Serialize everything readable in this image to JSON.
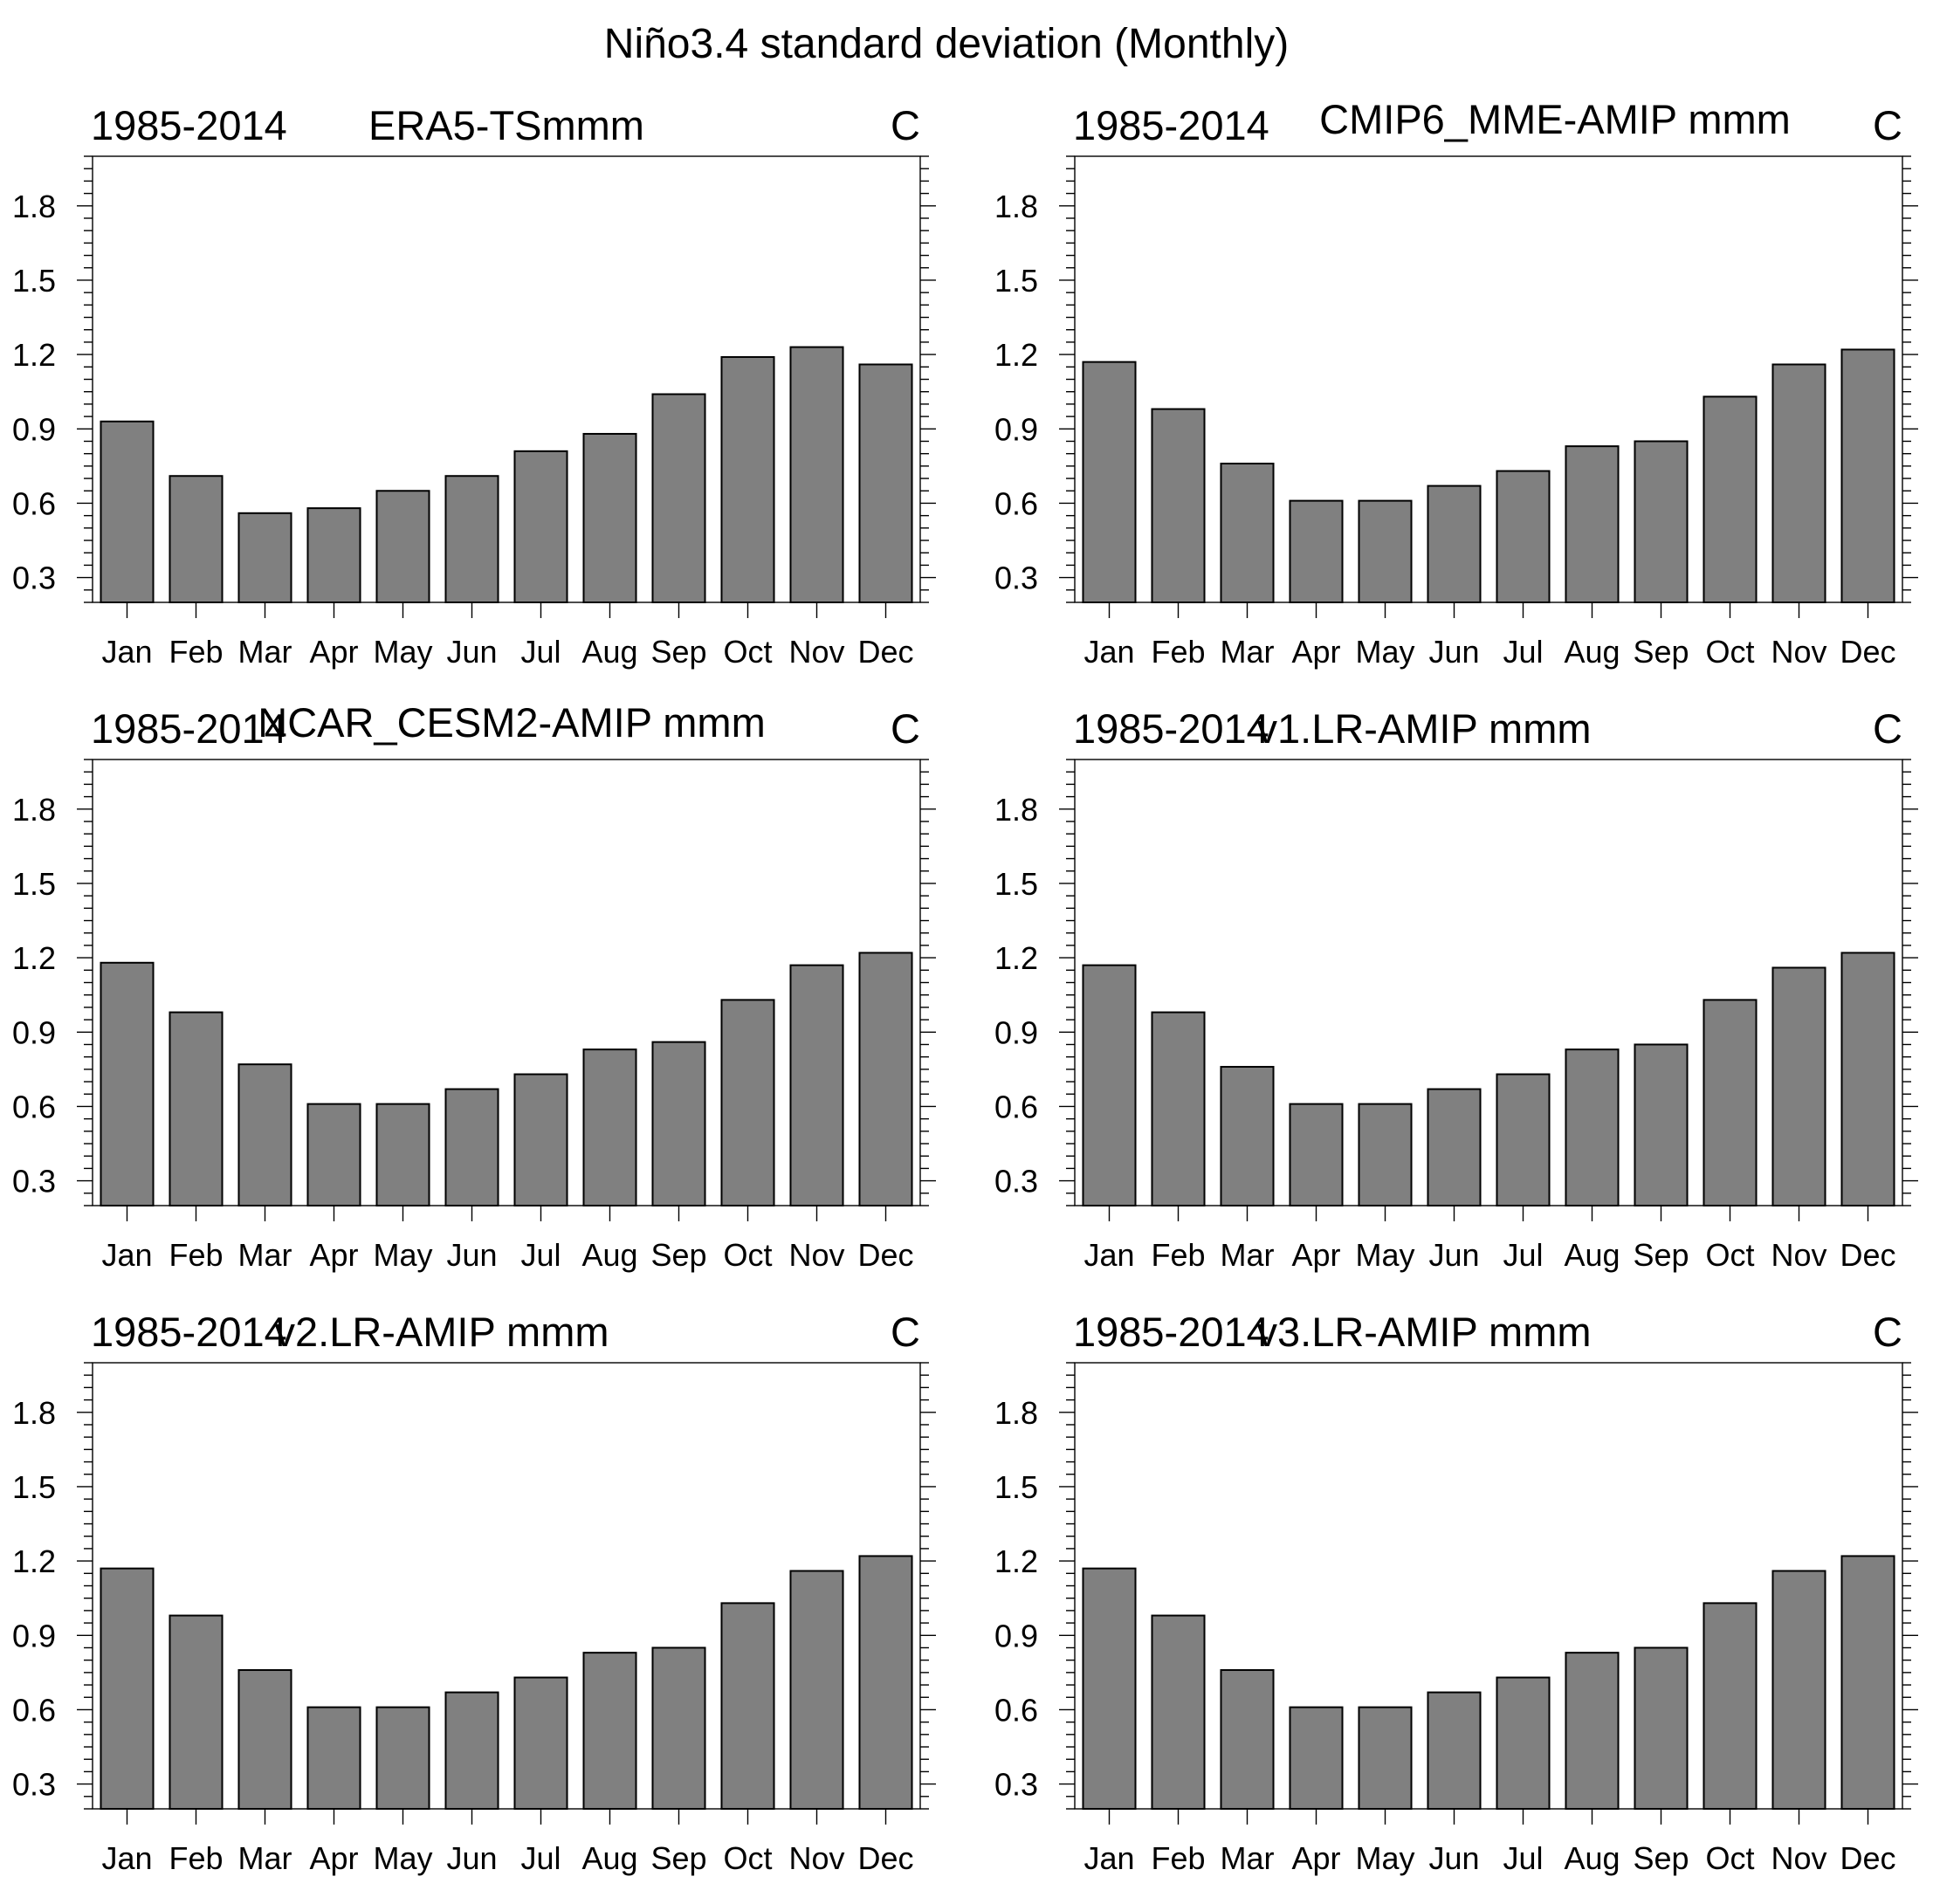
{
  "figure_title": "Niño3.4 standard deviation (Monthly)",
  "colors": {
    "bar_fill": "#808080",
    "bar_edge": "#000000",
    "axis": "#000000"
  },
  "chart_data": [
    {
      "type": "bar",
      "period": "1985-2014",
      "title": "ERA5-TSmmm",
      "units": "C",
      "categories": [
        "Jan",
        "Feb",
        "Mar",
        "Apr",
        "May",
        "Jun",
        "Jul",
        "Aug",
        "Sep",
        "Oct",
        "Nov",
        "Dec"
      ],
      "values": [
        0.93,
        0.71,
        0.56,
        0.58,
        0.65,
        0.71,
        0.81,
        0.88,
        1.04,
        1.19,
        1.23,
        1.16
      ],
      "ylim": [
        0.2,
        2.0
      ],
      "yticks": [
        0.3,
        0.6,
        0.9,
        1.2,
        1.5,
        1.8
      ],
      "ytick_labels": [
        "0.3",
        "0.6",
        "0.9",
        "1.2",
        "1.5",
        "1.8"
      ],
      "grid": false
    },
    {
      "type": "bar",
      "period": "1985-2014",
      "title": "CMIP6_MME-AMIP  mmm",
      "units": "C",
      "categories": [
        "Jan",
        "Feb",
        "Mar",
        "Apr",
        "May",
        "Jun",
        "Jul",
        "Aug",
        "Sep",
        "Oct",
        "Nov",
        "Dec"
      ],
      "values": [
        1.17,
        0.98,
        0.76,
        0.61,
        0.61,
        0.67,
        0.73,
        0.83,
        0.85,
        1.03,
        1.16,
        1.22
      ],
      "ylim": [
        0.2,
        2.0
      ],
      "yticks": [
        0.3,
        0.6,
        0.9,
        1.2,
        1.5,
        1.8
      ],
      "ytick_labels": [
        "0.3",
        "0.6",
        "0.9",
        "1.2",
        "1.5",
        "1.8"
      ],
      "grid": false
    },
    {
      "type": "bar",
      "period": "1985-2014",
      "title": "NCAR_CESM2-AMIP  mmm",
      "units": "C",
      "categories": [
        "Jan",
        "Feb",
        "Mar",
        "Apr",
        "May",
        "Jun",
        "Jul",
        "Aug",
        "Sep",
        "Oct",
        "Nov",
        "Dec"
      ],
      "values": [
        1.18,
        0.98,
        0.77,
        0.61,
        0.61,
        0.67,
        0.73,
        0.83,
        0.86,
        1.03,
        1.17,
        1.22
      ],
      "ylim": [
        0.2,
        2.0
      ],
      "yticks": [
        0.3,
        0.6,
        0.9,
        1.2,
        1.5,
        1.8
      ],
      "ytick_labels": [
        "0.3",
        "0.6",
        "0.9",
        "1.2",
        "1.5",
        "1.8"
      ],
      "grid": false
    },
    {
      "type": "bar",
      "period": "1985-2014",
      "title": "v1.LR-AMIP  mmm",
      "units": "C",
      "categories": [
        "Jan",
        "Feb",
        "Mar",
        "Apr",
        "May",
        "Jun",
        "Jul",
        "Aug",
        "Sep",
        "Oct",
        "Nov",
        "Dec"
      ],
      "values": [
        1.17,
        0.98,
        0.76,
        0.61,
        0.61,
        0.67,
        0.73,
        0.83,
        0.85,
        1.03,
        1.16,
        1.22
      ],
      "ylim": [
        0.2,
        2.0
      ],
      "yticks": [
        0.3,
        0.6,
        0.9,
        1.2,
        1.5,
        1.8
      ],
      "ytick_labels": [
        "0.3",
        "0.6",
        "0.9",
        "1.2",
        "1.5",
        "1.8"
      ],
      "grid": false
    },
    {
      "type": "bar",
      "period": "1985-2014",
      "title": "v2.LR-AMIP  mmm",
      "units": "C",
      "categories": [
        "Jan",
        "Feb",
        "Mar",
        "Apr",
        "May",
        "Jun",
        "Jul",
        "Aug",
        "Sep",
        "Oct",
        "Nov",
        "Dec"
      ],
      "values": [
        1.17,
        0.98,
        0.76,
        0.61,
        0.61,
        0.67,
        0.73,
        0.83,
        0.85,
        1.03,
        1.16,
        1.22
      ],
      "ylim": [
        0.2,
        2.0
      ],
      "yticks": [
        0.3,
        0.6,
        0.9,
        1.2,
        1.5,
        1.8
      ],
      "ytick_labels": [
        "0.3",
        "0.6",
        "0.9",
        "1.2",
        "1.5",
        "1.8"
      ],
      "grid": false
    },
    {
      "type": "bar",
      "period": "1985-2014",
      "title": "v3.LR-AMIP  mmm",
      "units": "C",
      "categories": [
        "Jan",
        "Feb",
        "Mar",
        "Apr",
        "May",
        "Jun",
        "Jul",
        "Aug",
        "Sep",
        "Oct",
        "Nov",
        "Dec"
      ],
      "values": [
        1.17,
        0.98,
        0.76,
        0.61,
        0.61,
        0.67,
        0.73,
        0.83,
        0.85,
        1.03,
        1.16,
        1.22
      ],
      "ylim": [
        0.2,
        2.0
      ],
      "yticks": [
        0.3,
        0.6,
        0.9,
        1.2,
        1.5,
        1.8
      ],
      "ytick_labels": [
        "0.3",
        "0.6",
        "0.9",
        "1.2",
        "1.5",
        "1.8"
      ],
      "grid": false
    }
  ]
}
